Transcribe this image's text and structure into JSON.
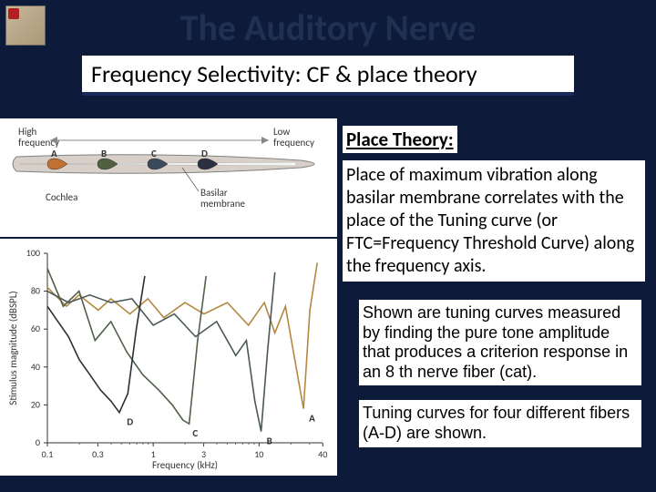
{
  "title": "The Auditory Nerve",
  "subtitle": "Frequency Selectivity: CF & place theory",
  "place_heading": "Place Theory:",
  "place_body": "Place of maximum vibration along basilar membrane correlates with the place of the Tuning curve (or FTC=Frequency Threshold Curve) along the frequency axis.",
  "caption1": "Shown are tuning curves measured by finding the pure tone amplitude that produces a criterion response in an 8 th nerve fiber (cat).",
  "caption2": "Tuning curves for four different fibers (A-D) are shown.",
  "cochlea": {
    "left_label": "High\nfrequency",
    "right_label": "Low\nfrequency",
    "markers": [
      "A",
      "B",
      "C",
      "D"
    ],
    "marker_colors": [
      "#c07030",
      "#506040",
      "#3a4a5a",
      "#2a3040"
    ],
    "cochlea_label": "Cochlea",
    "membrane_label": "Basilar\nmembrane",
    "shell_fill": "#d8d0c8",
    "shell_stroke": "#808080"
  },
  "chart": {
    "xlabel": "Frequency (kHz)",
    "ylabel": "Stimulus magnitude (dBSPL)",
    "xticks": [
      0.1,
      0.3,
      1,
      3,
      10,
      40
    ],
    "yticks": [
      0,
      20,
      40,
      60,
      80,
      100
    ],
    "ylim": [
      0,
      100
    ],
    "xlim_log": [
      -1,
      1.6
    ],
    "curves": {
      "A": {
        "color": "#b58840",
        "label_pos": [
          1.42,
          18
        ],
        "points": [
          [
            -1,
            82
          ],
          [
            -0.82,
            72
          ],
          [
            -0.7,
            78
          ],
          [
            -0.52,
            70
          ],
          [
            -0.4,
            76
          ],
          [
            -0.22,
            68
          ],
          [
            -0.05,
            76
          ],
          [
            0.1,
            66
          ],
          [
            0.3,
            74
          ],
          [
            0.48,
            68
          ],
          [
            0.7,
            74
          ],
          [
            0.9,
            62
          ],
          [
            1.05,
            74
          ],
          [
            1.15,
            58
          ],
          [
            1.25,
            72
          ],
          [
            1.35,
            40
          ],
          [
            1.42,
            18
          ],
          [
            1.48,
            70
          ],
          [
            1.55,
            95
          ]
        ]
      },
      "B": {
        "color": "#4a5858",
        "label_pos": [
          1.02,
          6
        ],
        "points": [
          [
            -1,
            80
          ],
          [
            -0.8,
            74
          ],
          [
            -0.6,
            78
          ],
          [
            -0.4,
            74
          ],
          [
            -0.2,
            76
          ],
          [
            0,
            62
          ],
          [
            0.2,
            68
          ],
          [
            0.4,
            56
          ],
          [
            0.6,
            64
          ],
          [
            0.78,
            46
          ],
          [
            0.88,
            54
          ],
          [
            0.96,
            22
          ],
          [
            1.02,
            6
          ],
          [
            1.08,
            48
          ],
          [
            1.15,
            90
          ]
        ]
      },
      "C": {
        "color": "#50604a",
        "label_pos": [
          0.32,
          10
        ],
        "points": [
          [
            -1,
            92
          ],
          [
            -0.85,
            72
          ],
          [
            -0.7,
            80
          ],
          [
            -0.55,
            54
          ],
          [
            -0.4,
            64
          ],
          [
            -0.25,
            48
          ],
          [
            -0.1,
            36
          ],
          [
            0.05,
            28
          ],
          [
            0.18,
            20
          ],
          [
            0.28,
            12
          ],
          [
            0.34,
            10
          ],
          [
            0.42,
            54
          ],
          [
            0.5,
            88
          ]
        ]
      },
      "D": {
        "color": "#2a3038",
        "label_pos": [
          -0.3,
          16
        ],
        "points": [
          [
            -1,
            72
          ],
          [
            -0.9,
            64
          ],
          [
            -0.8,
            56
          ],
          [
            -0.7,
            44
          ],
          [
            -0.6,
            36
          ],
          [
            -0.5,
            28
          ],
          [
            -0.4,
            22
          ],
          [
            -0.32,
            16
          ],
          [
            -0.24,
            26
          ],
          [
            -0.16,
            60
          ],
          [
            -0.08,
            88
          ]
        ]
      }
    }
  }
}
